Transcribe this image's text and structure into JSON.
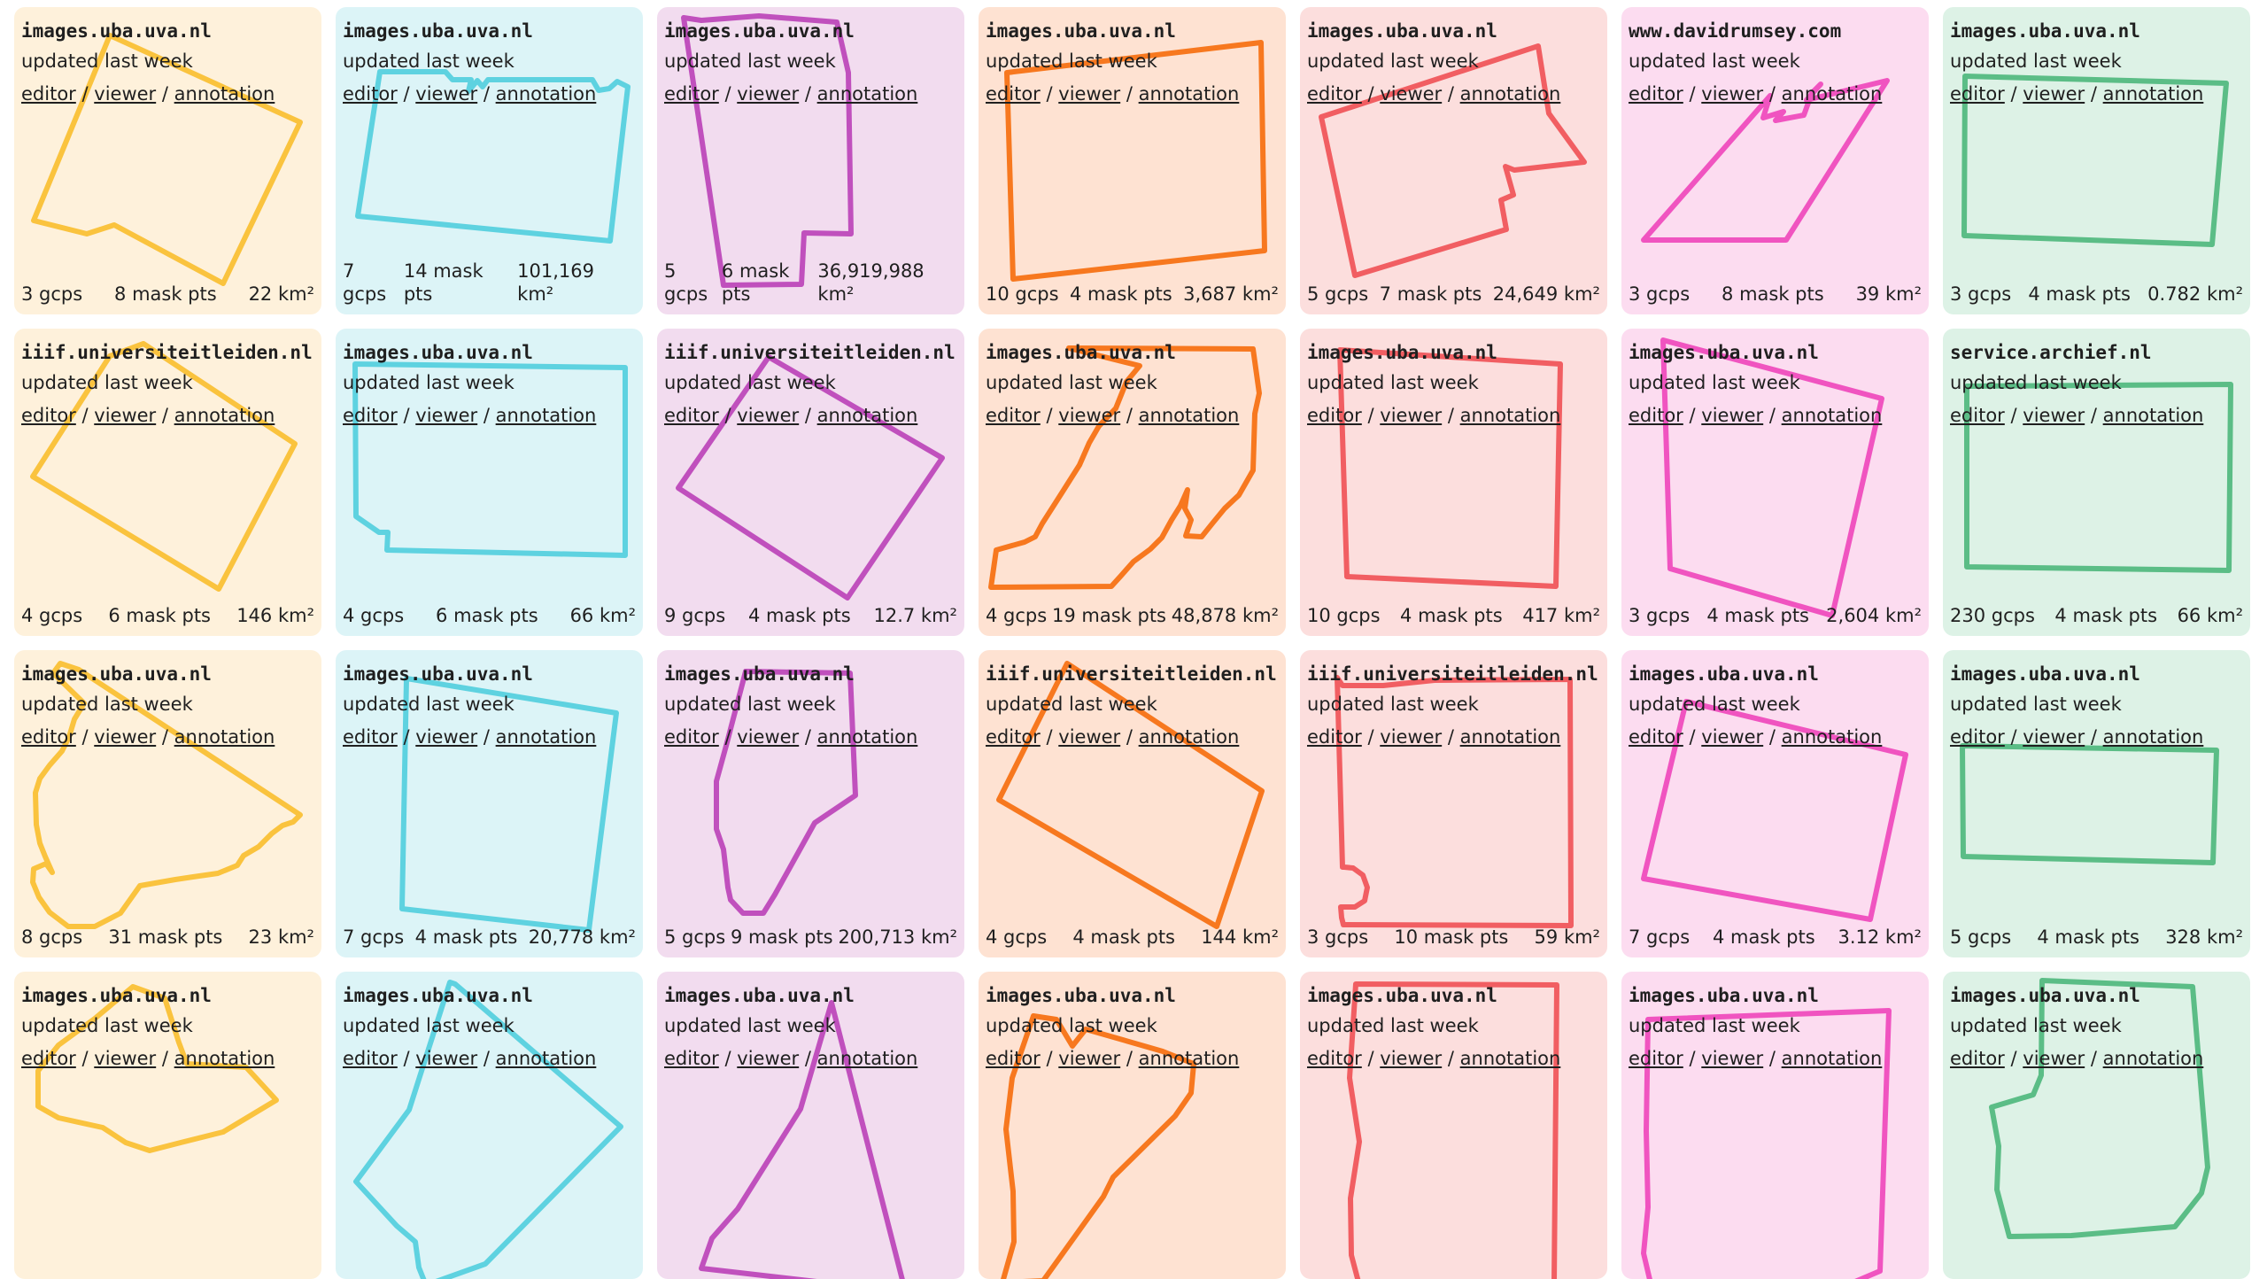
{
  "palette": {
    "yellow": {
      "bg": "#fef1db",
      "stroke": "#fac33e"
    },
    "cyan": {
      "bg": "#dcf4f7",
      "stroke": "#5ed2e0"
    },
    "purple": {
      "bg": "#f2dcef",
      "stroke": "#c050bd"
    },
    "orange": {
      "bg": "#fee2d2",
      "stroke": "#f7781f"
    },
    "red": {
      "bg": "#fcdedd",
      "stroke": "#f15e62"
    },
    "pink": {
      "bg": "#fcdcf0",
      "stroke": "#f054c0"
    },
    "green": {
      "bg": "#ddf2e6",
      "stroke": "#5bbd86"
    }
  },
  "column_colors": [
    "yellow",
    "cyan",
    "purple",
    "orange",
    "red",
    "pink",
    "green"
  ],
  "link_labels": {
    "editor": "editor",
    "viewer": "viewer",
    "annotation": "annotation",
    "sep": "/"
  },
  "maps": [
    {
      "host": "images.uba.uva.nl",
      "updated": "updated last week",
      "gcps": "3 gcps",
      "mask": "8 mask pts",
      "area": "22 km²"
    },
    {
      "host": "images.uba.uva.nl",
      "updated": "updated last week",
      "gcps": "7 gcps",
      "mask": "14 mask pts",
      "area": "101,169 km²"
    },
    {
      "host": "images.uba.uva.nl",
      "updated": "updated last week",
      "gcps": "5 gcps",
      "mask": "6 mask pts",
      "area": "36,919,988 km²"
    },
    {
      "host": "images.uba.uva.nl",
      "updated": "updated last week",
      "gcps": "10 gcps",
      "mask": "4 mask pts",
      "area": "3,687 km²"
    },
    {
      "host": "images.uba.uva.nl",
      "updated": "updated last week",
      "gcps": "5 gcps",
      "mask": "7 mask pts",
      "area": "24,649 km²"
    },
    {
      "host": "www.davidrumsey.com",
      "updated": "updated last week",
      "gcps": "3 gcps",
      "mask": "8 mask pts",
      "area": "39 km²"
    },
    {
      "host": "images.uba.uva.nl",
      "updated": "updated last week",
      "gcps": "3 gcps",
      "mask": "4 mask pts",
      "area": "0.782 km²"
    },
    {
      "host": "iiif.universiteitleiden.nl",
      "updated": "updated last week",
      "gcps": "4 gcps",
      "mask": "6 mask pts",
      "area": "146 km²"
    },
    {
      "host": "images.uba.uva.nl",
      "updated": "updated last week",
      "gcps": "4 gcps",
      "mask": "6 mask pts",
      "area": "66 km²"
    },
    {
      "host": "iiif.universiteitleiden.nl",
      "updated": "updated last week",
      "gcps": "9 gcps",
      "mask": "4 mask pts",
      "area": "12.7 km²"
    },
    {
      "host": "images.uba.uva.nl",
      "updated": "updated last week",
      "gcps": "4 gcps",
      "mask": "19 mask pts",
      "area": "48,878 km²"
    },
    {
      "host": "images.uba.uva.nl",
      "updated": "updated last week",
      "gcps": "10 gcps",
      "mask": "4 mask pts",
      "area": "417 km²"
    },
    {
      "host": "images.uba.uva.nl",
      "updated": "updated last week",
      "gcps": "3 gcps",
      "mask": "4 mask pts",
      "area": "2,604 km²"
    },
    {
      "host": "service.archief.nl",
      "updated": "updated last week",
      "gcps": "230 gcps",
      "mask": "4 mask pts",
      "area": "66 km²"
    },
    {
      "host": "images.uba.uva.nl",
      "updated": "updated last week",
      "gcps": "8 gcps",
      "mask": "31 mask pts",
      "area": "23 km²"
    },
    {
      "host": "images.uba.uva.nl",
      "updated": "updated last week",
      "gcps": "7 gcps",
      "mask": "4 mask pts",
      "area": "20,778 km²"
    },
    {
      "host": "images.uba.uva.nl",
      "updated": "updated last week",
      "gcps": "5 gcps",
      "mask": "9 mask pts",
      "area": "200,713 km²"
    },
    {
      "host": "iiif.universiteitleiden.nl",
      "updated": "updated last week",
      "gcps": "4 gcps",
      "mask": "4 mask pts",
      "area": "144 km²"
    },
    {
      "host": "iiif.universiteitleiden.nl",
      "updated": "updated last week",
      "gcps": "3 gcps",
      "mask": "10 mask pts",
      "area": "59 km²"
    },
    {
      "host": "images.uba.uva.nl",
      "updated": "updated last week",
      "gcps": "7 gcps",
      "mask": "4 mask pts",
      "area": "3.12 km²"
    },
    {
      "host": "images.uba.uva.nl",
      "updated": "updated last week",
      "gcps": "5 gcps",
      "mask": "4 mask pts",
      "area": "328 km²"
    },
    {
      "host": "images.uba.uva.nl",
      "updated": "updated last week",
      "gcps": "",
      "mask": "",
      "area": ""
    },
    {
      "host": "images.uba.uva.nl",
      "updated": "updated last week",
      "gcps": "",
      "mask": "",
      "area": ""
    },
    {
      "host": "images.uba.uva.nl",
      "updated": "updated last week",
      "gcps": "",
      "mask": "",
      "area": ""
    },
    {
      "host": "images.uba.uva.nl",
      "updated": "updated last week",
      "gcps": "",
      "mask": "",
      "area": ""
    },
    {
      "host": "images.uba.uva.nl",
      "updated": "updated last week",
      "gcps": "",
      "mask": "",
      "area": ""
    },
    {
      "host": "images.uba.uva.nl",
      "updated": "updated last week",
      "gcps": "",
      "mask": "",
      "area": ""
    },
    {
      "host": "images.uba.uva.nl",
      "updated": "updated last week",
      "gcps": "",
      "mask": "",
      "area": ""
    }
  ]
}
